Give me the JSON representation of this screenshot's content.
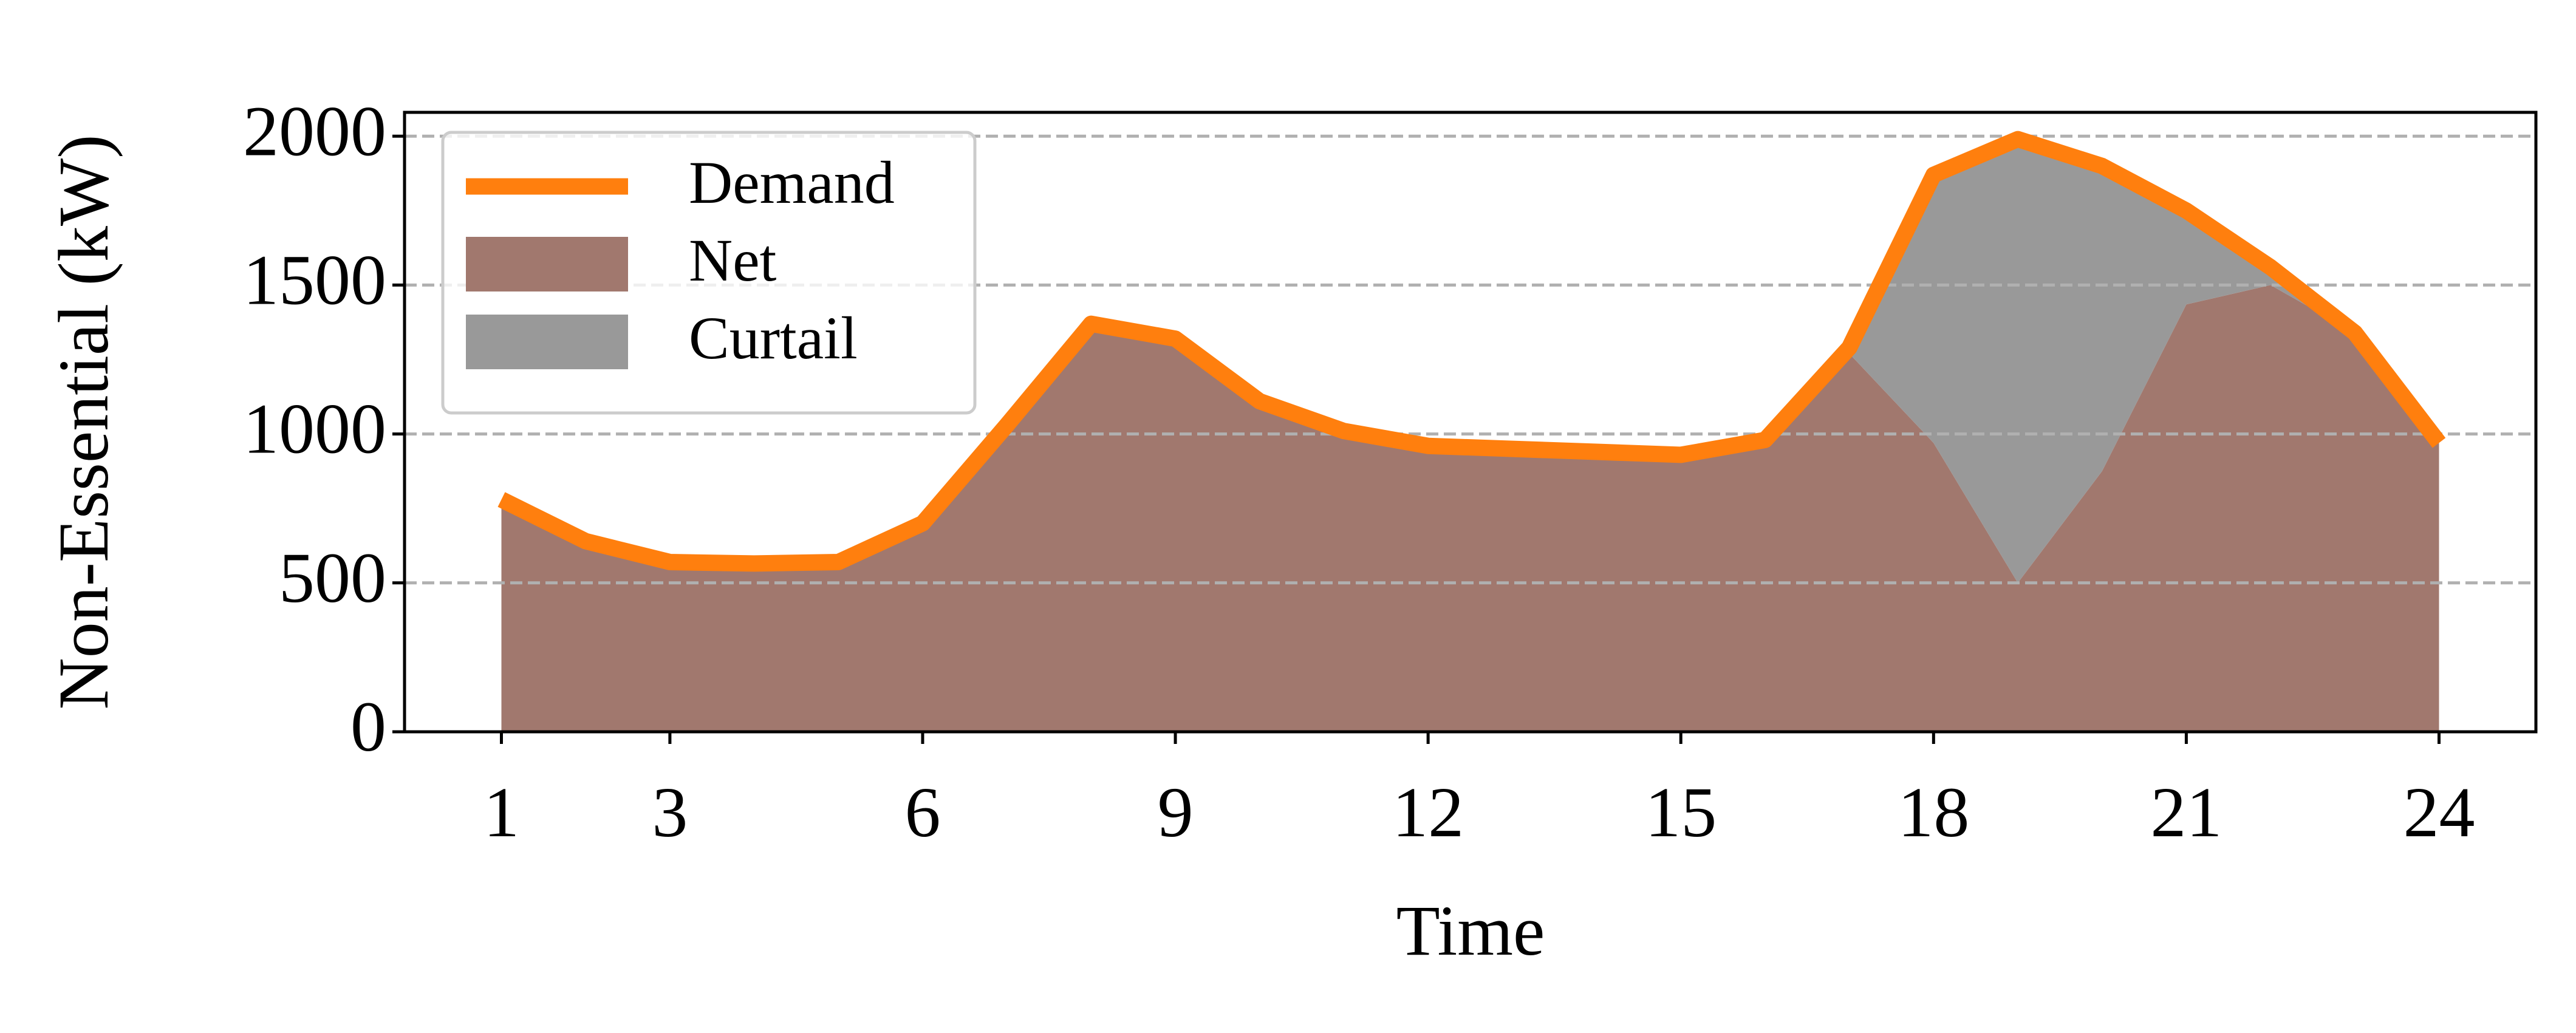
{
  "chart_data": {
    "type": "area",
    "x": [
      1,
      2,
      3,
      4,
      5,
      6,
      7,
      8,
      9,
      10,
      11,
      12,
      13,
      14,
      15,
      16,
      17,
      18,
      19,
      20,
      21,
      22,
      23,
      24
    ],
    "xlabel": "Time",
    "ylabel": "Non-Essential (kW)",
    "xlim": [
      -0.15,
      25.15
    ],
    "xticks": [
      1,
      3,
      6,
      9,
      12,
      15,
      18,
      21,
      24
    ],
    "ylim": [
      0,
      2080
    ],
    "yticks": [
      0,
      500,
      1000,
      1500,
      2000
    ],
    "grid": true,
    "legend": "upper left",
    "series": [
      {
        "name": "Demand",
        "type": "line",
        "color": "#ff7f0e",
        "values": [
          780,
          640,
          570,
          565,
          570,
          700,
          1030,
          1370,
          1320,
          1110,
          1010,
          960,
          950,
          940,
          930,
          980,
          1290,
          1870,
          1990,
          1900,
          1750,
          1560,
          1340,
          970
        ]
      },
      {
        "name": "Net",
        "type": "area",
        "color": "#a1786e",
        "values": [
          780,
          640,
          570,
          565,
          570,
          700,
          1030,
          1370,
          1320,
          1110,
          1010,
          960,
          950,
          940,
          930,
          980,
          1270,
          970,
          500,
          875,
          1435,
          1500,
          1340,
          970
        ]
      },
      {
        "name": "Curtail",
        "type": "area",
        "color": "#999999",
        "values": [
          0,
          0,
          0,
          0,
          0,
          0,
          0,
          0,
          0,
          0,
          0,
          0,
          0,
          0,
          0,
          0,
          20,
          900,
          1490,
          1025,
          315,
          60,
          0,
          0
        ]
      }
    ]
  }
}
